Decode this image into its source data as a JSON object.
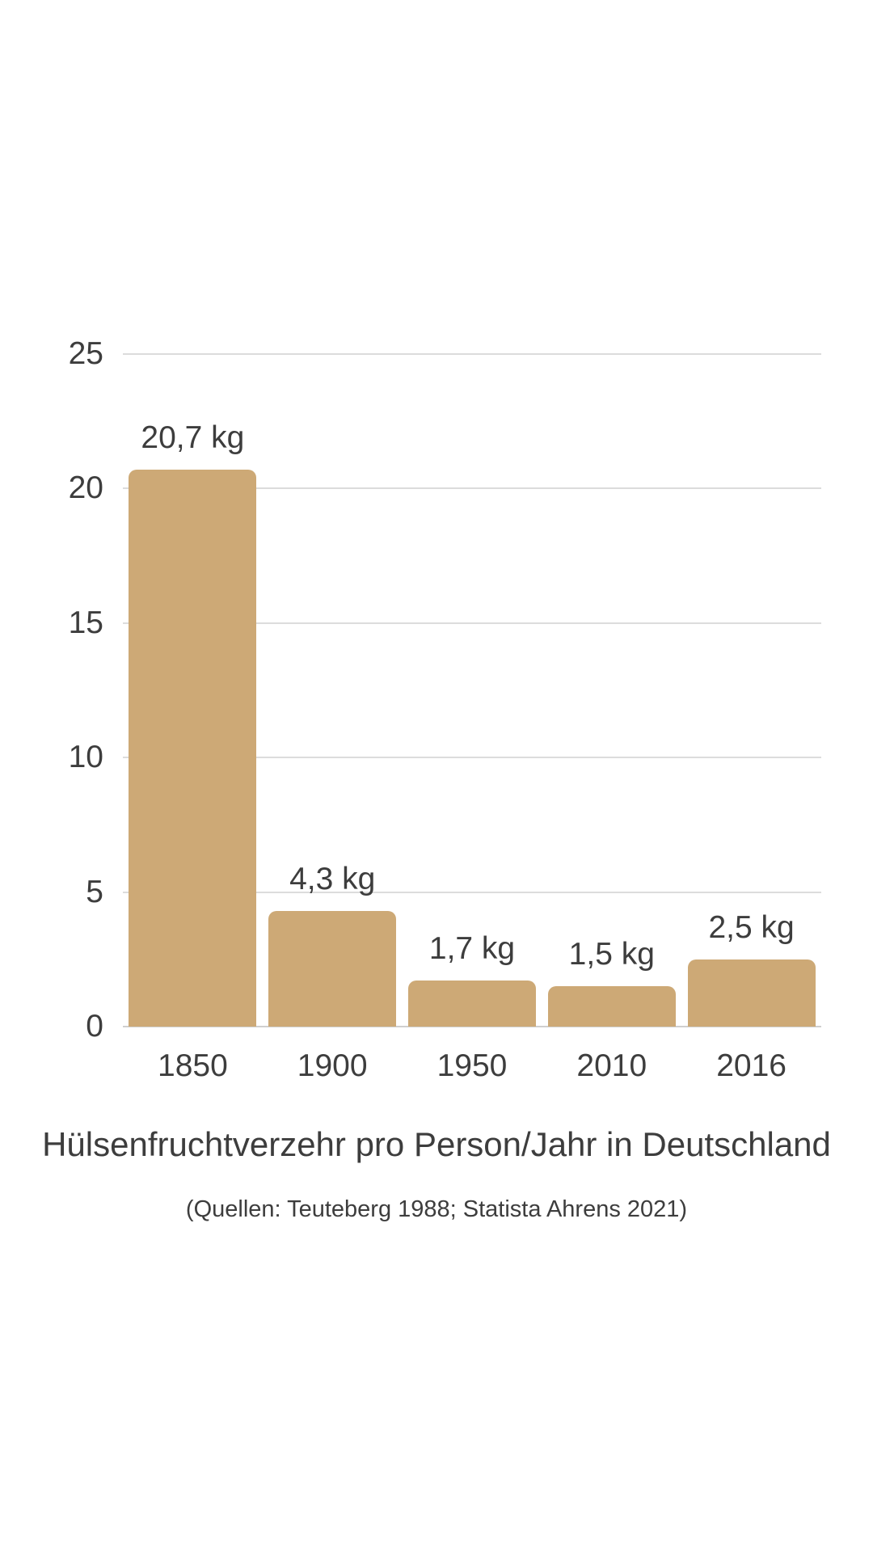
{
  "page": {
    "background_color": "#ffffff"
  },
  "chart_data": {
    "type": "bar",
    "title": "Hülsenfruchtverzehr pro Person/Jahr in Deutschland",
    "source_note": "(Quellen: Teuteberg 1988; Statista Ahrens 2021)",
    "categories": [
      "1850",
      "1900",
      "1950",
      "2010",
      "2016"
    ],
    "values": [
      20.7,
      4.3,
      1.7,
      1.5,
      2.5
    ],
    "bar_labels": [
      "20,7 kg",
      "4,3 kg",
      "1,7 kg",
      "1,5 kg",
      "2,5 kg"
    ],
    "unit": "kg",
    "yticks": [
      0,
      5,
      10,
      15,
      20,
      25
    ],
    "ylim": [
      0,
      25
    ],
    "grid": true,
    "legend_position": "none",
    "xlabel": "",
    "ylabel": "",
    "bar_color": "#CDA976",
    "text_color": "#3D3D3D",
    "gridline_color": "#DCDCDC",
    "axisline_color": "#CFCFCF"
  }
}
